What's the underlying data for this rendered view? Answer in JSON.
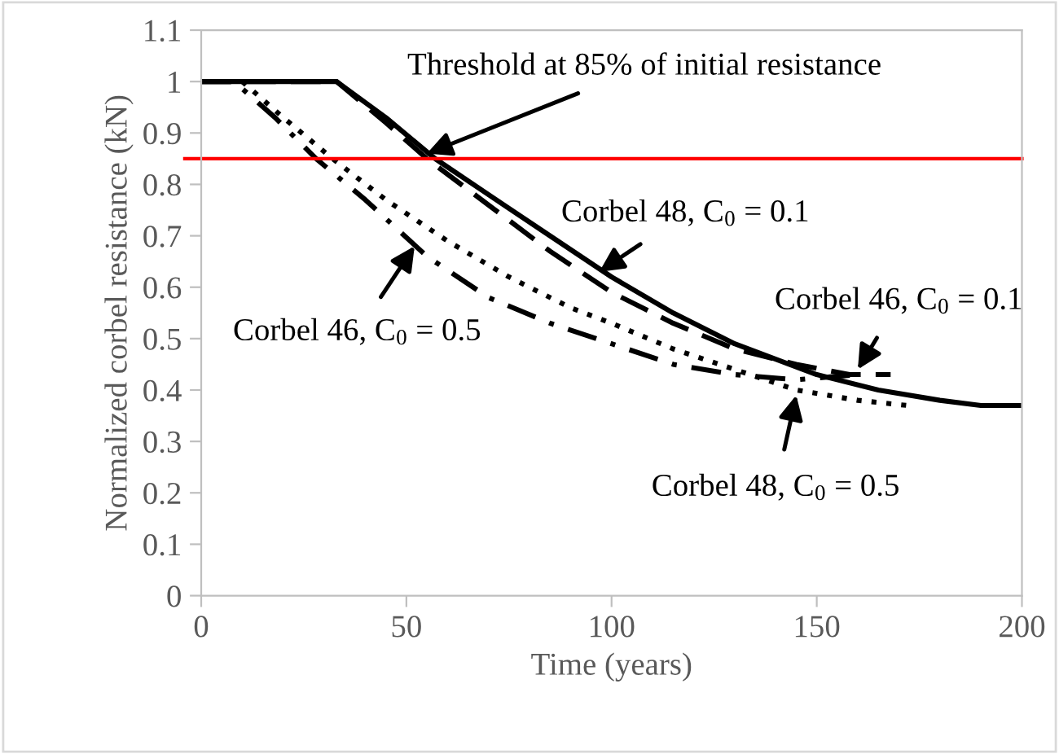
{
  "chart_data": {
    "type": "line",
    "xlabel": "Time (years)",
    "ylabel": "Normalized corbel resistance (kN)",
    "xlim": [
      0,
      200
    ],
    "xticks": [
      0,
      50,
      100,
      150,
      200
    ],
    "ylim": [
      0,
      1.1
    ],
    "yticks": [
      0,
      0.1,
      0.2,
      0.3,
      0.4,
      0.5,
      0.6,
      0.7,
      0.8,
      0.9,
      1,
      1.1
    ],
    "grid": false,
    "legend": false,
    "series": [
      {
        "color": "#000000",
        "line_style": "solid",
        "x": [
          0,
          33,
          45,
          57,
          70,
          85,
          100,
          115,
          130,
          150,
          165,
          180,
          190,
          200
        ],
        "values": [
          1,
          1,
          0.93,
          0.85,
          0.78,
          0.7,
          0.62,
          0.55,
          0.49,
          0.43,
          0.4,
          0.38,
          0.37,
          0.37
        ]
      },
      {
        "color": "#000000",
        "line_style": "dashed",
        "x": [
          0,
          33,
          45,
          55,
          70,
          85,
          100,
          115,
          130,
          145,
          158,
          168
        ],
        "values": [
          1,
          1,
          0.92,
          0.85,
          0.76,
          0.67,
          0.59,
          0.53,
          0.48,
          0.45,
          0.43,
          0.43
        ]
      },
      {
        "color": "#000000",
        "line_style": "dashdot",
        "x": [
          0,
          8,
          18,
          28,
          40,
          55,
          70,
          85,
          100,
          115,
          130,
          145,
          160
        ],
        "values": [
          1,
          1,
          0.93,
          0.85,
          0.77,
          0.66,
          0.58,
          0.53,
          0.49,
          0.45,
          0.43,
          0.42,
          0.43
        ]
      },
      {
        "color": "#000000",
        "line_style": "dotted",
        "x": [
          10,
          20,
          32,
          45,
          60,
          75,
          90,
          100,
          115,
          130,
          145,
          160,
          172
        ],
        "values": [
          1,
          0.93,
          0.85,
          0.77,
          0.69,
          0.62,
          0.56,
          0.53,
          0.48,
          0.44,
          0.4,
          0.38,
          0.37
        ]
      }
    ],
    "ref_lines": [
      {
        "axis": "y",
        "value": 0.85,
        "color": "#ff0000",
        "line_style": "solid"
      }
    ],
    "annotations": [
      {
        "text": "Threshold at 85% of initial resistance",
        "x": 55,
        "y": 0.86
      },
      {
        "text": "Corbel 48, C$_{0}$ = 0.1",
        "x": 97,
        "y": 0.63
      },
      {
        "text": "Corbel 46, C$_{0}$ = 0.1",
        "x": 160,
        "y": 0.44
      },
      {
        "text": "Corbel 46, C$_{0}$ = 0.5",
        "x": 52,
        "y": 0.68
      },
      {
        "text": "Corbel 48, C$_{0}$ = 0.5",
        "x": 145,
        "y": 0.39
      }
    ]
  }
}
